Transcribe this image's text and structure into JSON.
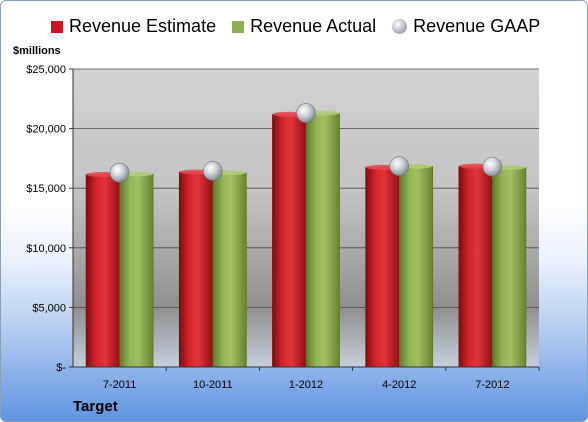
{
  "chart_data": {
    "type": "bar",
    "categories": [
      "7-2011",
      "10-2011",
      "1-2012",
      "4-2012",
      "7-2012"
    ],
    "series": [
      {
        "name": "Revenue Estimate",
        "values": [
          16150,
          16350,
          21200,
          16750,
          16850
        ],
        "color": "#c8161d"
      },
      {
        "name": "Revenue Actual",
        "values": [
          16200,
          16300,
          21300,
          16850,
          16750
        ],
        "color": "#8fae4f"
      },
      {
        "name": "Revenue GAAP",
        "values": [
          16300,
          16450,
          21300,
          16850,
          16800
        ],
        "color": "#b9bcc4",
        "marker": "circle"
      }
    ],
    "ylabel": "$millions",
    "ylim": [
      0,
      25000
    ],
    "yticks": [
      0,
      5000,
      10000,
      15000,
      20000,
      25000
    ],
    "ytick_labels": [
      "$-",
      "$5,000",
      "$10,000",
      "$15,000",
      "$20,000",
      "$25,000"
    ],
    "legend": "top",
    "grid": true
  },
  "footer": {
    "company": "Target"
  }
}
